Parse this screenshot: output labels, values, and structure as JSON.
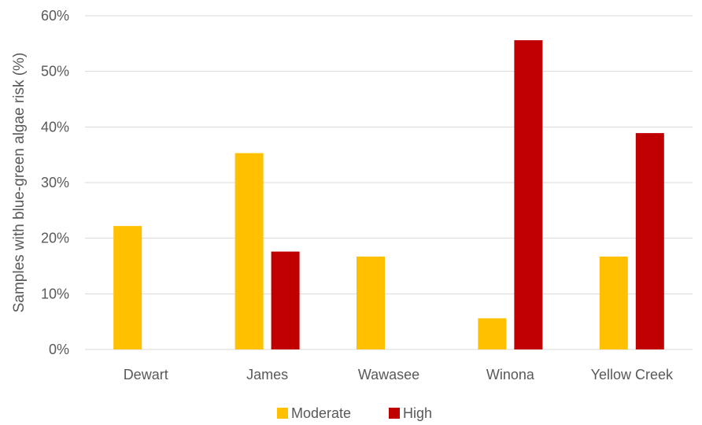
{
  "chart_data": {
    "type": "bar",
    "categories": [
      "Dewart",
      "James",
      "Wawasee",
      "Winona",
      "Yellow Creek"
    ],
    "series": [
      {
        "name": "Moderate",
        "values": [
          22.2,
          35.3,
          16.7,
          5.6,
          16.7
        ],
        "color": "#FFC000"
      },
      {
        "name": "High",
        "values": [
          0,
          17.6,
          0,
          55.6,
          38.9
        ],
        "color": "#C00000"
      }
    ],
    "title": "",
    "xlabel": "",
    "ylabel": "Samples with blue-green algae risk (%)",
    "ylim": [
      0,
      60
    ],
    "yticks": [
      0,
      10,
      20,
      30,
      40,
      50,
      60
    ],
    "ytick_labels": [
      "0%",
      "10%",
      "20%",
      "30%",
      "40%",
      "50%",
      "60%"
    ],
    "grid": true,
    "legend_position": "bottom",
    "gridline_color": "#D9D9D9"
  }
}
